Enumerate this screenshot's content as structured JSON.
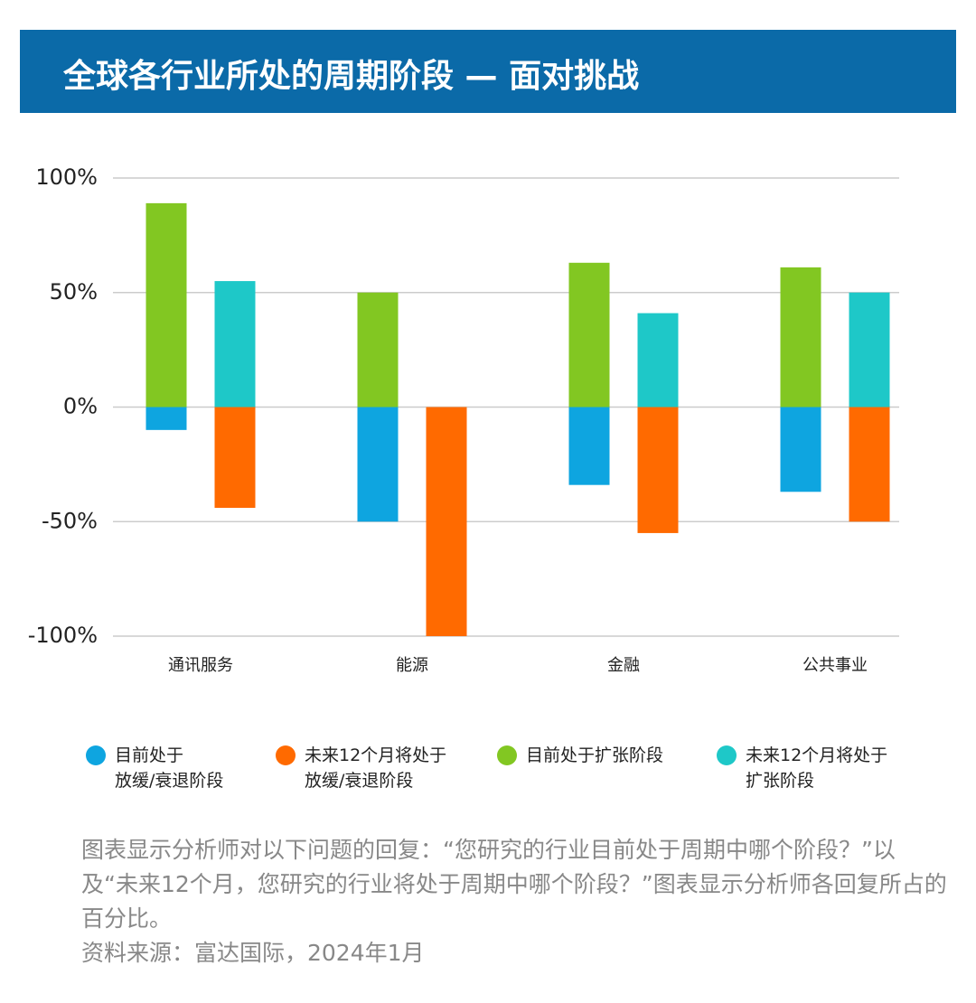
{
  "header": {
    "title": "全球各行业所处的周期阶段 — 面对挑战"
  },
  "chart_data": {
    "type": "bar",
    "categories": [
      "通讯服务",
      "能源",
      "金融",
      "公共事业"
    ],
    "series": [
      {
        "name": "目前处于\n放缓/衰退阶段",
        "color": "#0ea5e0",
        "values": [
          -10,
          -50,
          -34,
          -37
        ]
      },
      {
        "name": "未来12个月将处于\n放缓/衰退阶段",
        "color": "#ff6a00",
        "values": [
          -44,
          -100,
          -55,
          -50
        ]
      },
      {
        "name": "目前处于扩张阶段",
        "color": "#82c722",
        "values": [
          89,
          50,
          63,
          61
        ]
      },
      {
        "name": "未来12个月将处于\n扩张阶段",
        "color": "#1ec8c8",
        "values": [
          55,
          0,
          41,
          50
        ]
      }
    ],
    "ylim": [
      -100,
      100
    ],
    "yticks": [
      {
        "value": -100,
        "label": "-100%"
      },
      {
        "value": -50,
        "label": "-50%"
      },
      {
        "value": 0,
        "label": "0%"
      },
      {
        "value": 50,
        "label": "50%"
      },
      {
        "value": 100,
        "label": "100%"
      }
    ],
    "grid": true
  },
  "footer": {
    "note": "图表显示分析师对以下问题的回复：“您研究的行业目前处于周期中哪个阶段？”以及“未来12个月，您研究的行业将处于周期中哪个阶段？”图表显示分析师各回复所占的百分比。",
    "source": "资料来源：富达国际，2024年1月"
  }
}
